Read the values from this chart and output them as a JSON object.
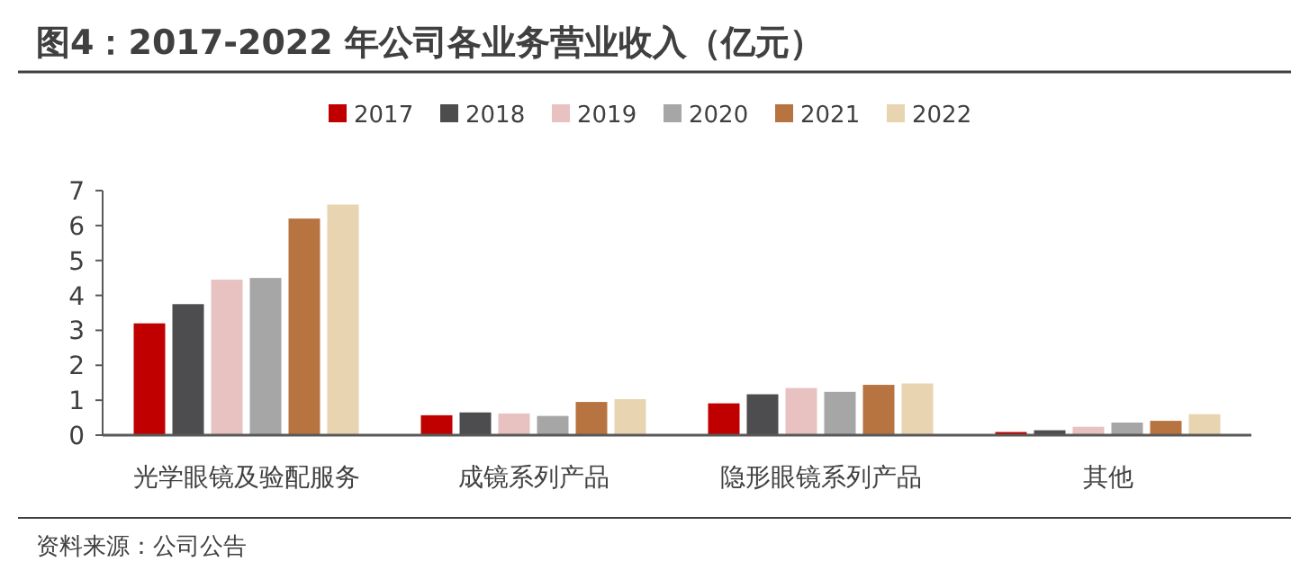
{
  "chart_data": {
    "type": "bar",
    "title": "图4：2017-2022 年公司各业务营业收入（亿元）",
    "categories": [
      "光学眼镜及验配服务",
      "成镜系列产品",
      "隐形眼镜系列产品",
      "其他"
    ],
    "series": [
      {
        "name": "2017",
        "color": "#c00000",
        "values": [
          3.2,
          0.57,
          0.91,
          0.09
        ]
      },
      {
        "name": "2018",
        "color": "#4d4d4f",
        "values": [
          3.75,
          0.65,
          1.17,
          0.14
        ]
      },
      {
        "name": "2019",
        "color": "#e8c1c1",
        "values": [
          4.45,
          0.62,
          1.35,
          0.24
        ]
      },
      {
        "name": "2020",
        "color": "#a6a6a6",
        "values": [
          4.5,
          0.55,
          1.24,
          0.36
        ]
      },
      {
        "name": "2021",
        "color": "#b87440",
        "values": [
          6.2,
          0.95,
          1.44,
          0.41
        ]
      },
      {
        "name": "2022",
        "color": "#e8d4b0",
        "values": [
          6.6,
          1.03,
          1.48,
          0.6
        ]
      }
    ],
    "ylim": [
      0,
      7
    ],
    "yticks": [
      0,
      1,
      2,
      3,
      4,
      5,
      6,
      7
    ],
    "grid": false,
    "legend": "top",
    "annotations": [
      "资料来源：公司公告"
    ]
  }
}
